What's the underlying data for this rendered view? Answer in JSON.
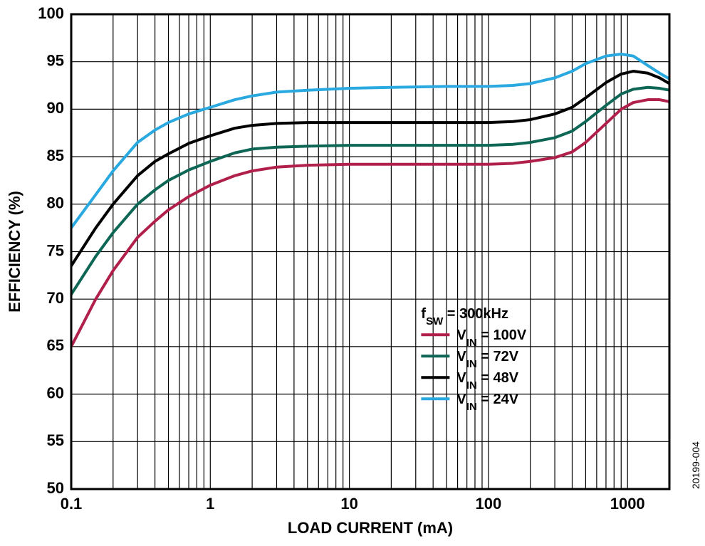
{
  "chart": {
    "type": "line",
    "background_color": "#ffffff",
    "plot_border_width": 3,
    "plot_border_color": "#000000",
    "grid_color": "#000000",
    "grid_width": 1.2,
    "x": {
      "label": "LOAD CURRENT (mA)",
      "label_fontsize": 22,
      "scale": "log",
      "min": 0.1,
      "max": 2000,
      "decade_ticks": [
        0.1,
        1,
        10,
        100,
        1000
      ],
      "decade_labels": [
        "0.1",
        "1",
        "10",
        "100",
        "1000"
      ],
      "tick_fontsize": 22
    },
    "y": {
      "label": "EFFICIENCY (%)",
      "label_fontsize": 22,
      "scale": "linear",
      "min": 50,
      "max": 100,
      "tick_step": 5,
      "ticks": [
        50,
        55,
        60,
        65,
        70,
        75,
        80,
        85,
        90,
        95,
        100
      ],
      "tick_fontsize": 22
    },
    "series": [
      {
        "name": "VIN = 24V",
        "legend_prefix": "V",
        "legend_sub": "IN",
        "legend_suffix": " = 24V",
        "color": "#2aa9e0",
        "line_width": 4,
        "data": [
          [
            0.1,
            77.5
          ],
          [
            0.15,
            81.0
          ],
          [
            0.2,
            83.5
          ],
          [
            0.3,
            86.5
          ],
          [
            0.4,
            87.8
          ],
          [
            0.5,
            88.6
          ],
          [
            0.7,
            89.5
          ],
          [
            1.0,
            90.2
          ],
          [
            1.5,
            91.0
          ],
          [
            2.0,
            91.4
          ],
          [
            3.0,
            91.8
          ],
          [
            5.0,
            92.0
          ],
          [
            10,
            92.2
          ],
          [
            20,
            92.3
          ],
          [
            50,
            92.4
          ],
          [
            100,
            92.4
          ],
          [
            150,
            92.5
          ],
          [
            200,
            92.7
          ],
          [
            300,
            93.3
          ],
          [
            400,
            94.0
          ],
          [
            500,
            94.8
          ],
          [
            700,
            95.6
          ],
          [
            900,
            95.8
          ],
          [
            1100,
            95.6
          ],
          [
            1400,
            94.6
          ],
          [
            1700,
            93.8
          ],
          [
            2000,
            93.2
          ]
        ]
      },
      {
        "name": "VIN = 48V",
        "legend_prefix": "V",
        "legend_sub": "IN",
        "legend_suffix": " = 48V",
        "color": "#000000",
        "line_width": 4,
        "data": [
          [
            0.1,
            73.5
          ],
          [
            0.15,
            77.5
          ],
          [
            0.2,
            80.0
          ],
          [
            0.3,
            83.0
          ],
          [
            0.4,
            84.5
          ],
          [
            0.5,
            85.3
          ],
          [
            0.7,
            86.4
          ],
          [
            1.0,
            87.2
          ],
          [
            1.5,
            88.0
          ],
          [
            2.0,
            88.3
          ],
          [
            3.0,
            88.5
          ],
          [
            5.0,
            88.6
          ],
          [
            10,
            88.6
          ],
          [
            20,
            88.6
          ],
          [
            50,
            88.6
          ],
          [
            100,
            88.6
          ],
          [
            150,
            88.7
          ],
          [
            200,
            88.9
          ],
          [
            300,
            89.5
          ],
          [
            400,
            90.2
          ],
          [
            500,
            91.2
          ],
          [
            700,
            92.8
          ],
          [
            900,
            93.7
          ],
          [
            1100,
            94.0
          ],
          [
            1400,
            93.8
          ],
          [
            1700,
            93.3
          ],
          [
            2000,
            92.7
          ]
        ]
      },
      {
        "name": "VIN = 72V",
        "legend_prefix": "V",
        "legend_sub": "IN",
        "legend_suffix": " = 72V",
        "color": "#0e6655",
        "line_width": 4,
        "data": [
          [
            0.1,
            70.5
          ],
          [
            0.15,
            74.5
          ],
          [
            0.2,
            77.0
          ],
          [
            0.3,
            80.0
          ],
          [
            0.4,
            81.5
          ],
          [
            0.5,
            82.5
          ],
          [
            0.7,
            83.6
          ],
          [
            1.0,
            84.5
          ],
          [
            1.5,
            85.4
          ],
          [
            2.0,
            85.8
          ],
          [
            3.0,
            86.0
          ],
          [
            5.0,
            86.1
          ],
          [
            10,
            86.2
          ],
          [
            20,
            86.2
          ],
          [
            50,
            86.2
          ],
          [
            100,
            86.2
          ],
          [
            150,
            86.3
          ],
          [
            200,
            86.5
          ],
          [
            300,
            87.0
          ],
          [
            400,
            87.7
          ],
          [
            500,
            88.7
          ],
          [
            700,
            90.4
          ],
          [
            900,
            91.6
          ],
          [
            1100,
            92.1
          ],
          [
            1400,
            92.3
          ],
          [
            1700,
            92.2
          ],
          [
            2000,
            92.0
          ]
        ]
      },
      {
        "name": "VIN = 100V",
        "legend_prefix": "V",
        "legend_sub": "IN",
        "legend_suffix": " = 100V",
        "color": "#b0204b",
        "line_width": 4,
        "data": [
          [
            0.1,
            65.0
          ],
          [
            0.15,
            70.0
          ],
          [
            0.2,
            73.0
          ],
          [
            0.3,
            76.5
          ],
          [
            0.4,
            78.2
          ],
          [
            0.5,
            79.4
          ],
          [
            0.7,
            80.8
          ],
          [
            1.0,
            82.0
          ],
          [
            1.5,
            83.0
          ],
          [
            2.0,
            83.5
          ],
          [
            3.0,
            83.9
          ],
          [
            5.0,
            84.1
          ],
          [
            10,
            84.2
          ],
          [
            20,
            84.2
          ],
          [
            50,
            84.2
          ],
          [
            100,
            84.2
          ],
          [
            150,
            84.3
          ],
          [
            200,
            84.5
          ],
          [
            300,
            84.9
          ],
          [
            400,
            85.5
          ],
          [
            500,
            86.5
          ],
          [
            700,
            88.5
          ],
          [
            900,
            90.0
          ],
          [
            1100,
            90.7
          ],
          [
            1400,
            91.0
          ],
          [
            1700,
            91.0
          ],
          [
            2000,
            90.8
          ]
        ]
      }
    ],
    "legend": {
      "title_prefix": "f",
      "title_sub": "SW",
      "title_suffix": " = 300kHz",
      "fontsize": 20,
      "swatch_width": 40,
      "swatch_thickness": 4,
      "position": "lower-right"
    },
    "footer_id": "20199-004",
    "footer_fontsize": 14
  }
}
